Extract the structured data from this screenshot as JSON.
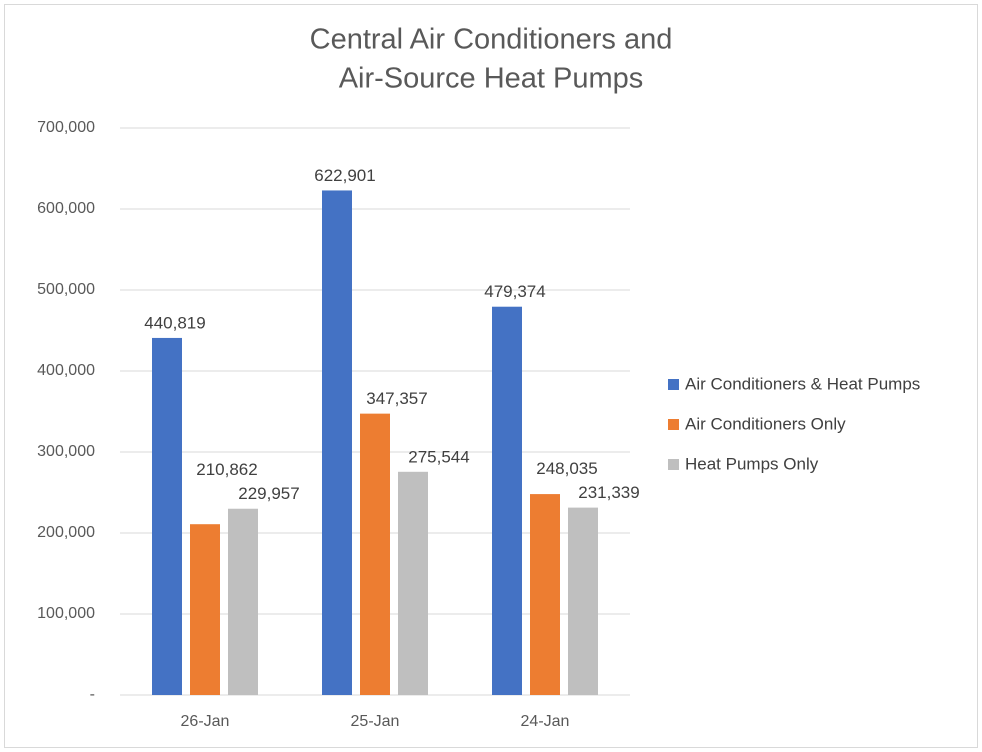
{
  "chart_data": {
    "type": "bar",
    "title": [
      "Central Air Conditioners and",
      "Air-Source Heat Pumps"
    ],
    "categories": [
      "26-Jan",
      "25-Jan",
      "24-Jan"
    ],
    "series": [
      {
        "name": "Air Conditioners & Heat Pumps",
        "color": "#4472c4",
        "values": [
          440819,
          622901,
          479374
        ],
        "value_labels": [
          "440,819",
          "622,901",
          "479,374"
        ]
      },
      {
        "name": "Air Conditioners Only",
        "color": "#ed7d31",
        "values": [
          210862,
          347357,
          248035
        ],
        "value_labels": [
          "210,862",
          "347,357",
          "248,035"
        ]
      },
      {
        "name": "Heat Pumps Only",
        "color": "#bfbfbf",
        "values": [
          229957,
          275544,
          231339
        ],
        "value_labels": [
          "229,957",
          "275,544",
          "231,339"
        ]
      }
    ],
    "ylim": [
      0,
      700000
    ],
    "yticks": [
      {
        "value": 0,
        "label": "-"
      },
      {
        "value": 100000,
        "label": "100,000"
      },
      {
        "value": 200000,
        "label": "200,000"
      },
      {
        "value": 300000,
        "label": "300,000"
      },
      {
        "value": 400000,
        "label": "400,000"
      },
      {
        "value": 500000,
        "label": "500,000"
      },
      {
        "value": 600000,
        "label": "600,000"
      },
      {
        "value": 700000,
        "label": "700,000"
      }
    ],
    "grid": true,
    "legend": "right"
  }
}
